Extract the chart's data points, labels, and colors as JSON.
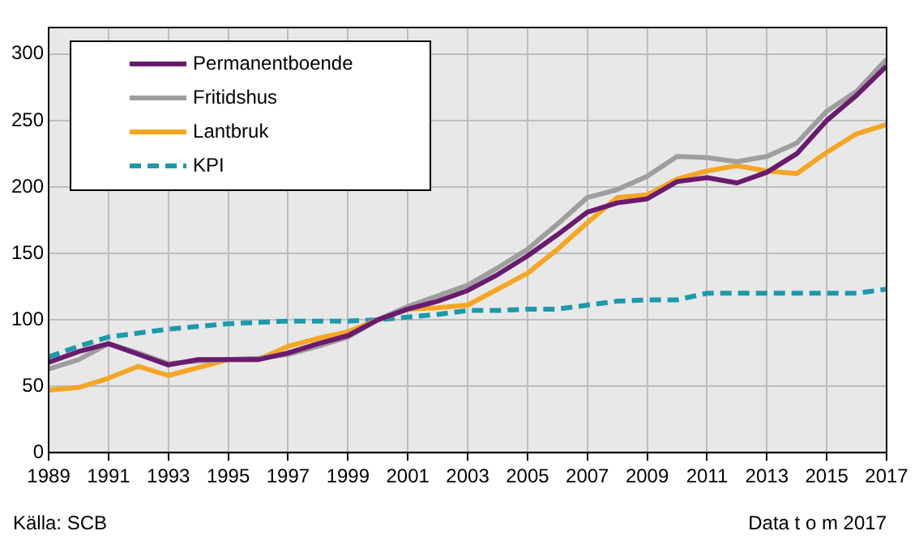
{
  "chart_data": {
    "type": "line",
    "x": [
      1989,
      1990,
      1991,
      1992,
      1993,
      1994,
      1995,
      1996,
      1997,
      1998,
      1999,
      2000,
      2001,
      2002,
      2003,
      2004,
      2005,
      2006,
      2007,
      2008,
      2009,
      2010,
      2011,
      2012,
      2013,
      2014,
      2015,
      2016,
      2017
    ],
    "series": [
      {
        "name": "Permanentboende",
        "color": "#6a1b6e",
        "values": [
          68,
          76,
          82,
          74,
          66,
          70,
          70,
          70,
          75,
          82,
          88,
          100,
          108,
          114,
          122,
          134,
          148,
          164,
          181,
          188,
          191,
          204,
          207,
          203,
          211,
          225,
          250,
          269,
          291
        ]
      },
      {
        "name": "Fritidshus",
        "color": "#9e9e9e",
        "values": [
          63,
          70,
          82,
          75,
          67,
          69,
          70,
          71,
          74,
          80,
          87,
          100,
          110,
          118,
          126,
          139,
          153,
          172,
          192,
          198,
          208,
          223,
          222,
          219,
          223,
          233,
          257,
          272,
          296
        ]
      },
      {
        "name": "Lantbruk",
        "color": "#f5a623",
        "values": [
          47,
          49,
          56,
          65,
          58,
          64,
          70,
          70,
          80,
          86,
          91,
          100,
          108,
          109,
          111,
          123,
          135,
          153,
          173,
          192,
          194,
          206,
          212,
          216,
          212,
          210,
          226,
          240,
          247
        ]
      },
      {
        "name": "KPI",
        "color": "#1a9aaa",
        "line_style": "dashed",
        "values": [
          72,
          80,
          87,
          90,
          93,
          95,
          97,
          98,
          99,
          99,
          99,
          100,
          102,
          104,
          107,
          107,
          108,
          108,
          111,
          114,
          115,
          115,
          120,
          120,
          120,
          120,
          120,
          120,
          123
        ]
      }
    ],
    "xlim": [
      1989,
      2017
    ],
    "xticks": [
      1989,
      1991,
      1993,
      1995,
      1997,
      1999,
      2001,
      2003,
      2005,
      2007,
      2009,
      2011,
      2013,
      2015,
      2017
    ],
    "ylim": [
      0,
      320
    ],
    "yticks": [
      0,
      50,
      100,
      150,
      200,
      250,
      300
    ],
    "grid": true,
    "legend": "top left",
    "line_style": "solid",
    "marker": "none",
    "annotations": [
      "Källa: SCB",
      "Data t o m 2017"
    ]
  }
}
